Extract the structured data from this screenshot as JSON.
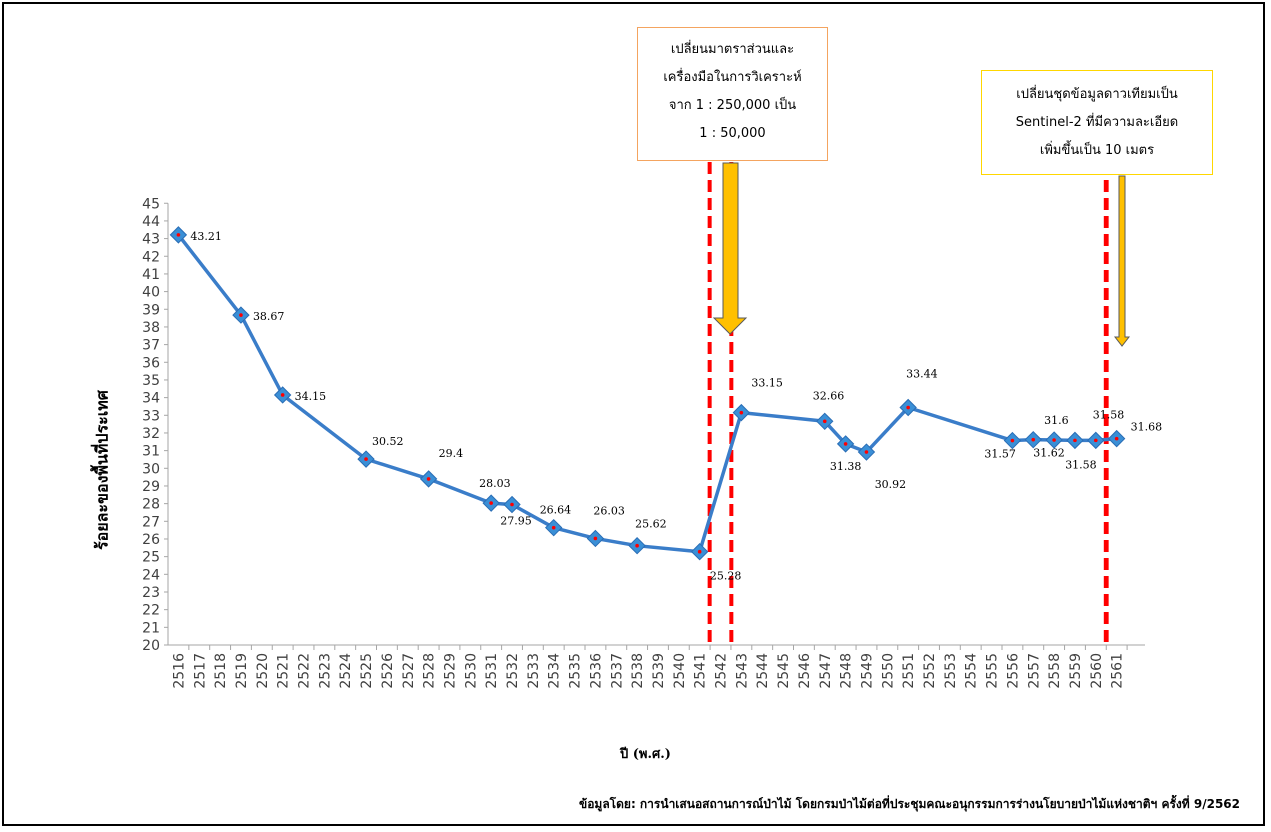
{
  "chart_data": {
    "type": "line",
    "xlabel": "ปี (พ.ศ.)",
    "ylabel": "ร้อยละของพื้นที่ประเทศ",
    "ylim": [
      20,
      45
    ],
    "ytick_step": 1,
    "grid": false,
    "categories": [
      "2516",
      "2517",
      "2518",
      "2519",
      "2520",
      "2521",
      "2522",
      "2523",
      "2524",
      "2525",
      "2526",
      "2527",
      "2528",
      "2529",
      "2530",
      "2531",
      "2532",
      "2533",
      "2534",
      "2535",
      "2536",
      "2537",
      "2538",
      "2539",
      "2540",
      "2541",
      "2542",
      "2543",
      "2544",
      "2545",
      "2546",
      "2547",
      "2548",
      "2549",
      "2550",
      "2551",
      "2552",
      "2553",
      "2554",
      "2555",
      "2556",
      "2557",
      "2558",
      "2559",
      "2560",
      "2561"
    ],
    "series": [
      {
        "color": "#3a7dc9",
        "marker_color": "#3a8fd6",
        "points": [
          {
            "x": "2516",
            "y": 43.21,
            "label": "43.21"
          },
          {
            "x": "2519",
            "y": 38.67,
            "label": "38.67"
          },
          {
            "x": "2521",
            "y": 34.15,
            "label": "34.15"
          },
          {
            "x": "2525",
            "y": 30.52,
            "label": "30.52"
          },
          {
            "x": "2528",
            "y": 29.4,
            "label": "29.4"
          },
          {
            "x": "2531",
            "y": 28.03,
            "label": "28.03"
          },
          {
            "x": "2532",
            "y": 27.95,
            "label": "27.95"
          },
          {
            "x": "2534",
            "y": 26.64,
            "label": "26.64"
          },
          {
            "x": "2536",
            "y": 26.03,
            "label": "26.03"
          },
          {
            "x": "2538",
            "y": 25.62,
            "label": "25.62"
          },
          {
            "x": "2541",
            "y": 25.28,
            "label": "25.28"
          },
          {
            "x": "2543",
            "y": 33.15,
            "label": "33.15"
          },
          {
            "x": "2547",
            "y": 32.66,
            "label": "32.66"
          },
          {
            "x": "2548",
            "y": 31.38,
            "label": "31.38"
          },
          {
            "x": "2549",
            "y": 30.92,
            "label": "30.92"
          },
          {
            "x": "2551",
            "y": 33.44,
            "label": "33.44"
          },
          {
            "x": "2556",
            "y": 31.57,
            "label": "31.57"
          },
          {
            "x": "2557",
            "y": 31.62,
            "label": "31.62"
          },
          {
            "x": "2558",
            "y": 31.6,
            "label": "31.6"
          },
          {
            "x": "2559",
            "y": 31.58,
            "label": "31.58"
          },
          {
            "x": "2560",
            "y": 31.58,
            "label": "31.58"
          },
          {
            "x": "2561",
            "y": 31.68,
            "label": "31.68"
          }
        ]
      }
    ],
    "reference_lines": [
      {
        "x": "2541",
        "color": "#ff0000",
        "style": "dashed"
      },
      {
        "x": "2543",
        "color": "#ff0000",
        "style": "dashed"
      },
      {
        "x": "2560",
        "color": "#ff0000",
        "style": "dashed"
      },
      {
        "x": "2561",
        "color": "#ff0000",
        "style": "dashed"
      }
    ],
    "annotations": [
      {
        "id": "note1",
        "lines": [
          "เปลี่ยนมาตราส่วนและ",
          "เครื่องมือในการวิเคราะห์",
          "จาก 1 : 250,000 เป็น",
          "1 : 50,000"
        ],
        "border_color": "#f4a460",
        "arrow_color": "#ffc000"
      },
      {
        "id": "note2",
        "lines": [
          "เปลี่ยนชุดข้อมูลดาวเทียมเป็น",
          "Sentinel-2  ที่มีความละเอียด",
          "เพิ่มขึ้นเป็น  10 เมตร"
        ],
        "border_color": "#ffd700",
        "arrow_color": "#ffc000"
      }
    ]
  },
  "source": "ข้อมูลโดย: การนำเสนอสถานการณ์ป่าไม้ โดยกรมป่าไม้ต่อที่ประชุมคณะอนุกรรมการร่างนโยบายป่าไม้แห่งชาติฯ ครั้งที่ 9/2562"
}
